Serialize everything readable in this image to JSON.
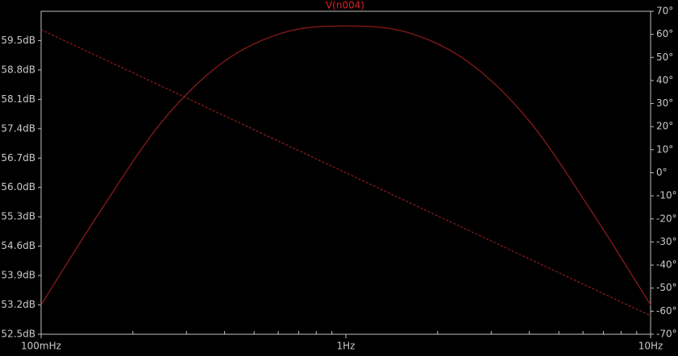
{
  "chart_data": {
    "type": "line",
    "title": "V(n004)",
    "x_scale": "log",
    "xlim": [
      0.1,
      10
    ],
    "x_tick_values": [
      0.1,
      1,
      10
    ],
    "x_tick_labels": [
      "100mHz",
      "1Hz",
      "10Hz"
    ],
    "ylim_left": [
      52.5,
      60.2
    ],
    "y_left_ticks": [
      52.5,
      53.2,
      53.9,
      54.6,
      55.3,
      56.0,
      56.7,
      57.4,
      58.1,
      58.8,
      59.5
    ],
    "y_left_tick_labels": [
      "52.5dB",
      "53.2dB",
      "53.9dB",
      "54.6dB",
      "55.3dB",
      "56.0dB",
      "56.7dB",
      "57.4dB",
      "58.1dB",
      "58.8dB",
      "59.5dB"
    ],
    "ylim_right": [
      -70,
      70
    ],
    "y_right_ticks": [
      -70,
      -60,
      -50,
      -40,
      -30,
      -20,
      -10,
      0,
      10,
      20,
      30,
      40,
      50,
      60,
      70
    ],
    "y_right_tick_labels": [
      "-70°",
      "-60°",
      "-50°",
      "-40°",
      "-30°",
      "-20°",
      "-10°",
      "0°",
      "10°",
      "20°",
      "30°",
      "40°",
      "50°",
      "60°",
      "70°"
    ],
    "grid": false,
    "series": [
      {
        "axis": "left",
        "style": "solid",
        "x": [
          0.1,
          0.1585,
          0.2512,
          0.3981,
          0.631,
          1.0,
          1.585,
          2.512,
          3.981,
          6.31,
          10.0
        ],
        "y": [
          53.2,
          55.5,
          57.6,
          59.0,
          59.7,
          59.85,
          59.7,
          59.0,
          57.6,
          55.5,
          53.2
        ]
      },
      {
        "axis": "right",
        "style": "dashed",
        "x": [
          0.1,
          0.3162,
          1.0,
          3.162,
          10.0
        ],
        "y": [
          62,
          31,
          0,
          -31,
          -62
        ]
      }
    ],
    "colors": {
      "background": "#000000",
      "frame": "#c0c0c0",
      "trace": "#8a1a1a",
      "title": "#e02020",
      "tick_text": "#c9c9c9"
    }
  }
}
